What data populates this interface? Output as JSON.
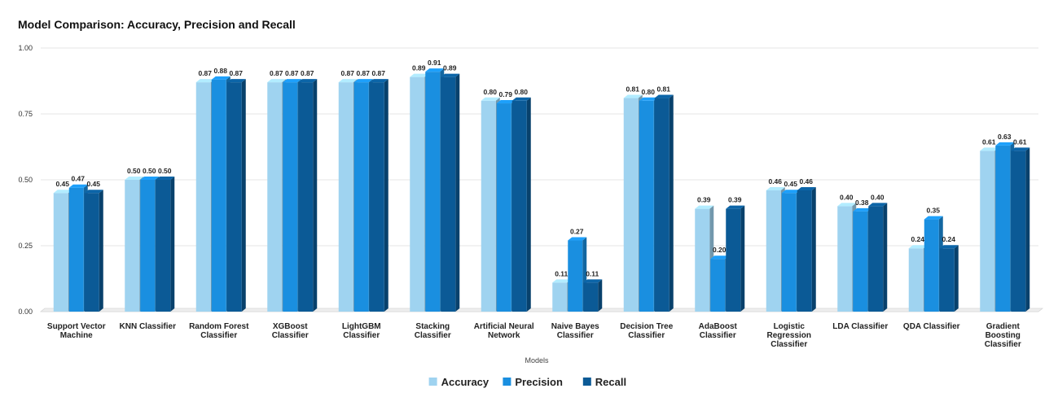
{
  "chart_data": {
    "type": "bar",
    "title": "Model Comparison: Accuracy, Precision and Recall",
    "xlabel": "Models",
    "ylabel": "",
    "ylim": [
      0,
      1
    ],
    "yticks": [
      "0.00",
      "0.25",
      "0.50",
      "0.75",
      "1.00"
    ],
    "ytick_values": [
      0,
      0.25,
      0.5,
      0.75,
      1.0
    ],
    "grid": true,
    "legend_position": "bottom-center",
    "categories": [
      [
        "Support Vector",
        "Machine"
      ],
      [
        "KNN Classifier"
      ],
      [
        "Random Forest",
        "Classifier"
      ],
      [
        "XGBoost",
        "Classifier"
      ],
      [
        "LightGBM",
        "Classifier"
      ],
      [
        "Stacking",
        "Classifier"
      ],
      [
        "Artificial Neural",
        "Network"
      ],
      [
        "Naive Bayes",
        "Classifier"
      ],
      [
        "Decision Tree",
        "Classifier"
      ],
      [
        "AdaBoost",
        "Classifier"
      ],
      [
        "Logistic",
        "Regression",
        "Classifier"
      ],
      [
        "LDA Classifier"
      ],
      [
        "QDA Classifier"
      ],
      [
        "Gradient",
        "Boosting",
        "Classifier"
      ]
    ],
    "series": [
      {
        "name": "Accuracy",
        "color": "#9fd3f0",
        "values": [
          0.45,
          0.5,
          0.87,
          0.87,
          0.87,
          0.89,
          0.8,
          0.11,
          0.81,
          0.39,
          0.46,
          0.4,
          0.24,
          0.61
        ],
        "labels": [
          "0.45",
          "0.50",
          "0.87",
          "0.87",
          "0.87",
          "0.89",
          "0.80",
          "0.11",
          "0.81",
          "0.39",
          "0.46",
          "0.40",
          "0.24",
          "0.61"
        ]
      },
      {
        "name": "Precision",
        "color": "#1a8fe0",
        "values": [
          0.47,
          0.5,
          0.88,
          0.87,
          0.87,
          0.91,
          0.79,
          0.27,
          0.8,
          0.2,
          0.45,
          0.38,
          0.35,
          0.63
        ],
        "labels": [
          "0.47",
          "0.50",
          "0.88",
          "0.87",
          "0.87",
          "0.91",
          "0.79",
          "0.27",
          "0.80",
          "0.20",
          "0.45",
          "0.38",
          "0.35",
          "0.63"
        ]
      },
      {
        "name": "Recall",
        "color": "#0b5a96",
        "values": [
          0.45,
          0.5,
          0.87,
          0.87,
          0.87,
          0.89,
          0.8,
          0.11,
          0.81,
          0.39,
          0.46,
          0.4,
          0.24,
          0.61
        ],
        "labels": [
          "0.45",
          "0.50",
          "0.87",
          "0.87",
          "0.87",
          "0.89",
          "0.80",
          "0.11",
          "0.81",
          "0.39",
          "0.46",
          "0.40",
          "0.24",
          "0.61"
        ]
      }
    ]
  }
}
